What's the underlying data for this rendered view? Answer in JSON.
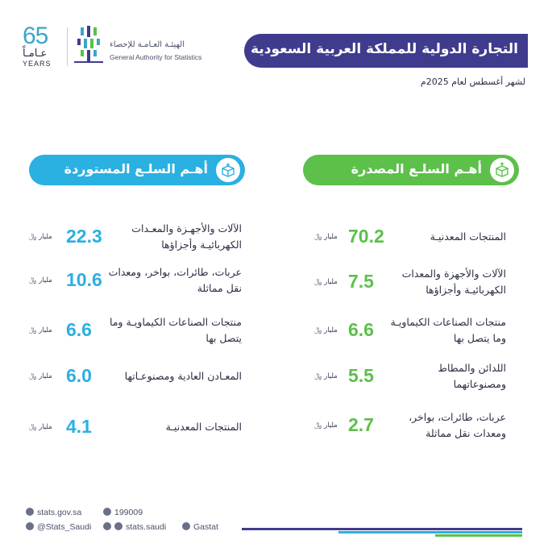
{
  "header": {
    "anniv_number": "65",
    "anniv_ar": "عـامـاً",
    "anniv_en": "YEARS",
    "org_ar": "الهيئـة العـامـة للإحصاء",
    "org_en": "General Authority for Statistics",
    "title": "التجارة الدولية للمملكة العربية السعودية",
    "subtitle": "لشهر أغسطس لعام 2025م"
  },
  "exports": {
    "heading": "أهـم السلـع المصدرة",
    "unit": "مليار ﷼",
    "items": [
      {
        "name": "المنتجات المعدنيـة",
        "value": "70.2"
      },
      {
        "name": "الآلات والأجهزة والمعدات الكهربائيـة وأجزاؤها",
        "value": "7.5"
      },
      {
        "name": "منتجات الصناعات الكيماويـة وما يتصل بها",
        "value": "6.6"
      },
      {
        "name": "اللدائن والمطاط ومصنوعاتهما",
        "value": "5.5"
      },
      {
        "name": "عربات، طائرات، بواخر، ومعدات نقل مماثلة",
        "value": "2.7"
      }
    ]
  },
  "imports": {
    "heading": "أهـم السلـع المستوردة",
    "unit": "مليار ﷼",
    "items": [
      {
        "name": "الآلات والأجهـزة والمعـدات الكهربائيـة وأجزاؤها",
        "value": "22.3"
      },
      {
        "name": "عربات، طائرات، بواخر، ومعدات نقل مماثلة",
        "value": "10.6"
      },
      {
        "name": "منتجات الصناعات الكيماويـة وما يتصل بها",
        "value": "6.6"
      },
      {
        "name": "المعـادن العادية ومصنوعـاتها",
        "value": "6.0"
      },
      {
        "name": "المنتجات المعدنيـة",
        "value": "4.1"
      }
    ]
  },
  "footer": {
    "website": "stats.gov.sa",
    "phone": "199009",
    "twitter": "@Stats_Saudi",
    "social": "stats.saudi",
    "gastat": "Gastat"
  },
  "colors": {
    "title_bg": "#3f3c8e",
    "export_accent": "#5cc04a",
    "import_accent": "#2ab0e1"
  }
}
